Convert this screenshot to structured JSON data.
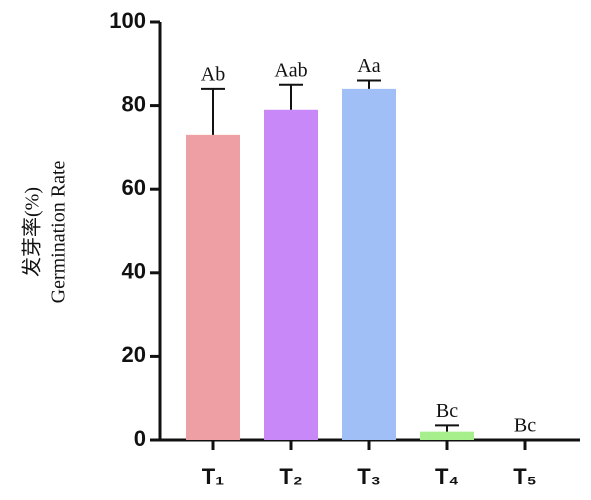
{
  "chart_data": {
    "type": "bar",
    "ylabel": [
      "发芽率(%)",
      "Germination Rate"
    ],
    "categories": [
      "T₁",
      "T₂",
      "T₃",
      "T₄",
      "T₅"
    ],
    "values": [
      73,
      79,
      84,
      2,
      0
    ],
    "errors": [
      11,
      6,
      2,
      1.5,
      0
    ],
    "letters": [
      "Ab",
      "Aab",
      "Aa",
      "Bc",
      "Bc"
    ],
    "colors": [
      "#ee9fa3",
      "#c988f7",
      "#a1bff7",
      "#a6ef8c",
      "#ffffff"
    ],
    "ylim": [
      0,
      100
    ],
    "yticks": [
      0,
      20,
      40,
      60,
      80,
      100
    ]
  }
}
